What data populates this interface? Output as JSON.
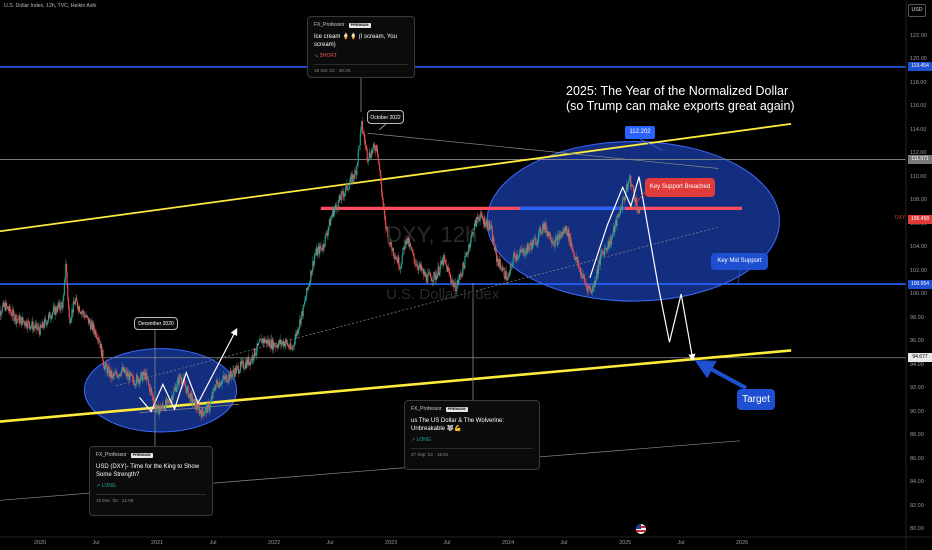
{
  "header": {
    "symbol_line": "U.S. Dollar Index, 12h, TVC, Heikin Ashi",
    "currency_button": "USD"
  },
  "watermark": {
    "ticker": "DXY, 12h",
    "name": "U.S. Dollar Index"
  },
  "headline": {
    "line1": "2025: The Year of the Normalized Dollar",
    "line2": "(so Trump can make exports great again)"
  },
  "annotations": {
    "october_2022": "October 2022",
    "december_2020": "December 2020",
    "price_label": "112.202",
    "key_support_breached": "Key Support Breached",
    "key_mid_support": "Key Mid Support",
    "target": "Target"
  },
  "callouts": [
    {
      "author": "FX_Professor",
      "badge": "PREMIUM",
      "title": "Ice cream 🍦🍦 (I scream, You scream)",
      "direction": "↘ SHORT",
      "timestamp": "18 Oct '22 · 00:25"
    },
    {
      "author": "FX_Professor",
      "badge": "PREMIUM",
      "title": "USD (DXY)- Time for the King to Show Some Strength?",
      "direction": "↗ LONG",
      "timestamp": "16 Dec '20 · 21:09"
    },
    {
      "author": "FX_Professor",
      "badge": "PREMIUM",
      "title": "us The US Dollar & The Wolverine: Unbreakable 🐺💪",
      "direction": "↗ LONG",
      "timestamp": "27 Sep '23 · 16:52"
    }
  ],
  "price_tags": [
    {
      "value": "119.454",
      "price": 119.454,
      "bg": "#1f4fd1",
      "fg": "#ffffff"
    },
    {
      "value": "111.571",
      "price": 111.571,
      "bg": "#7a7a7a",
      "fg": "#ffffff"
    },
    {
      "value": "106.458",
      "price": 106.458,
      "bg": "#e03b3b",
      "fg": "#ffffff"
    },
    {
      "value": "100.954",
      "price": 100.954,
      "bg": "#1f4fd1",
      "fg": "#ffffff"
    },
    {
      "value": "94.677",
      "price": 94.677,
      "bg": "#e8e8e8",
      "fg": "#000000"
    }
  ],
  "colors": {
    "background": "#000000",
    "up": "#26a69a",
    "down": "#ef5350",
    "blue_level": "#2962ff",
    "yellow_channel": "#ffeb3b",
    "red_level": "#ff4d5e",
    "grey_level": "#8c8c8c",
    "ellipse_fill": "#1a3fb0"
  },
  "chart_data": {
    "type": "candlestick",
    "title": "U.S. Dollar Index, 12h, TVC, Heikin Ashi",
    "y_axis": {
      "ylim": [
        79,
        124
      ],
      "ticks": [
        80,
        82,
        84,
        86,
        88,
        90,
        92,
        94,
        96,
        98,
        100,
        102,
        104,
        106,
        108,
        110,
        112,
        114,
        116,
        118,
        120,
        122
      ]
    },
    "x_axis": {
      "ticks": [
        "2020",
        "Jul",
        "2021",
        "Jul",
        "2022",
        "Jul",
        "2023",
        "Jul",
        "2024",
        "Jul",
        "2025",
        "Jul",
        "2026"
      ],
      "tick_t": [
        2020.0,
        2020.5,
        2021.0,
        2021.5,
        2022.0,
        2022.5,
        2023.0,
        2023.5,
        2024.0,
        2024.5,
        2025.0,
        2025.5,
        2026.0
      ]
    },
    "price_path": [
      [
        2019.62,
        98.3
      ],
      [
        2019.7,
        99.1
      ],
      [
        2019.8,
        98.0
      ],
      [
        2019.9,
        97.6
      ],
      [
        2020.0,
        97.0
      ],
      [
        2020.1,
        98.5
      ],
      [
        2020.2,
        99.3
      ],
      [
        2020.22,
        102.8
      ],
      [
        2020.25,
        97.9
      ],
      [
        2020.3,
        99.5
      ],
      [
        2020.4,
        98.0
      ],
      [
        2020.5,
        96.5
      ],
      [
        2020.55,
        94.0
      ],
      [
        2020.62,
        93.0
      ],
      [
        2020.7,
        93.6
      ],
      [
        2020.8,
        92.7
      ],
      [
        2020.9,
        93.2
      ],
      [
        2021.0,
        90.2
      ],
      [
        2021.1,
        90.8
      ],
      [
        2021.2,
        93.1
      ],
      [
        2021.3,
        91.0
      ],
      [
        2021.38,
        90.0
      ],
      [
        2021.45,
        90.5
      ],
      [
        2021.5,
        92.4
      ],
      [
        2021.6,
        93.0
      ],
      [
        2021.7,
        93.8
      ],
      [
        2021.8,
        94.5
      ],
      [
        2021.9,
        96.2
      ],
      [
        2022.0,
        95.8
      ],
      [
        2022.1,
        96.0
      ],
      [
        2022.15,
        95.3
      ],
      [
        2022.25,
        98.8
      ],
      [
        2022.35,
        103.5
      ],
      [
        2022.42,
        104.2
      ],
      [
        2022.5,
        107.0
      ],
      [
        2022.6,
        108.8
      ],
      [
        2022.7,
        110.5
      ],
      [
        2022.75,
        114.5
      ],
      [
        2022.8,
        111.8
      ],
      [
        2022.88,
        112.8
      ],
      [
        2022.95,
        106.0
      ],
      [
        2023.0,
        104.2
      ],
      [
        2023.08,
        102.5
      ],
      [
        2023.13,
        105.0
      ],
      [
        2023.2,
        103.0
      ],
      [
        2023.3,
        101.5
      ],
      [
        2023.38,
        101.6
      ],
      [
        2023.45,
        103.0
      ],
      [
        2023.55,
        100.5
      ],
      [
        2023.62,
        102.5
      ],
      [
        2023.7,
        105.5
      ],
      [
        2023.75,
        106.8
      ],
      [
        2023.85,
        105.8
      ],
      [
        2023.9,
        103.2
      ],
      [
        2024.0,
        101.3
      ],
      [
        2024.05,
        103.3
      ],
      [
        2024.15,
        103.8
      ],
      [
        2024.25,
        104.8
      ],
      [
        2024.3,
        106.0
      ],
      [
        2024.4,
        104.5
      ],
      [
        2024.5,
        105.7
      ],
      [
        2024.55,
        104.0
      ],
      [
        2024.6,
        102.5
      ],
      [
        2024.67,
        100.8
      ],
      [
        2024.72,
        100.4
      ],
      [
        2024.8,
        103.5
      ],
      [
        2024.88,
        104.7
      ],
      [
        2024.95,
        107.0
      ],
      [
        2025.0,
        108.5
      ],
      [
        2025.04,
        110.0
      ],
      [
        2025.1,
        107.7
      ],
      [
        2025.13,
        106.5
      ]
    ],
    "horizontal_levels": [
      {
        "price": 119.454,
        "color": "blue_level"
      },
      {
        "price": 111.571,
        "color": "grey_level"
      },
      {
        "price": 107.4,
        "color": "red_level",
        "from": 2022.4,
        "to": 2026.0
      },
      {
        "price": 107.4,
        "color": "blue_level",
        "from": 2024.1,
        "to": 2025.0
      },
      {
        "price": 100.954,
        "color": "blue_level"
      },
      {
        "price": 94.677,
        "color": "grey_level"
      }
    ],
    "trend_lines": [
      {
        "role": "yellow-upper",
        "from": [
          2019.62,
          105.4
        ],
        "to": [
          2026.42,
          114.6
        ],
        "color": "yellow_channel"
      },
      {
        "role": "yellow-lower",
        "from": [
          2019.62,
          89.2
        ],
        "to": [
          2026.42,
          95.3
        ],
        "color": "yellow_channel"
      },
      {
        "role": "dotted-support",
        "from": [
          2020.65,
          92.3
        ],
        "to": [
          2025.8,
          105.8
        ],
        "color": "grey_level",
        "dashed": true
      },
      {
        "role": "grey-top",
        "from": [
          2022.8,
          113.8
        ],
        "to": [
          2025.8,
          110.8
        ],
        "color": "grey_level"
      },
      {
        "role": "grey-bottom",
        "from": [
          2019.62,
          82.5
        ],
        "to": [
          2025.98,
          87.6
        ],
        "color": "grey_level"
      },
      {
        "role": "box-bottom",
        "from": [
          2020.85,
          90.0
        ],
        "to": [
          2021.7,
          90.7
        ],
        "color": "grey_level"
      }
    ],
    "projection_paths": [
      {
        "points": [
          [
            2020.85,
            91.3
          ],
          [
            2020.95,
            90.1
          ],
          [
            2021.05,
            92.4
          ],
          [
            2021.15,
            90.3
          ],
          [
            2021.25,
            93.4
          ],
          [
            2021.35,
            90.8
          ],
          [
            2021.68,
            97.1
          ]
        ],
        "color": "#ffffff"
      },
      {
        "points": [
          [
            2024.7,
            101.5
          ],
          [
            2024.85,
            106.0
          ],
          [
            2024.98,
            109.2
          ],
          [
            2025.05,
            107.6
          ],
          [
            2025.12,
            110.1
          ],
          [
            2025.28,
            101.0
          ],
          [
            2025.38,
            96.0
          ],
          [
            2025.48,
            100.1
          ],
          [
            2025.58,
            94.5
          ]
        ],
        "color": "#ffffff"
      }
    ],
    "ellipses": [
      {
        "center": [
          2021.03,
          91.9
        ],
        "rx_years": 0.65,
        "ry_price": 3.55
      },
      {
        "center": [
          2025.07,
          106.3
        ],
        "rx_years": 1.25,
        "ry_price": 6.8
      }
    ]
  }
}
